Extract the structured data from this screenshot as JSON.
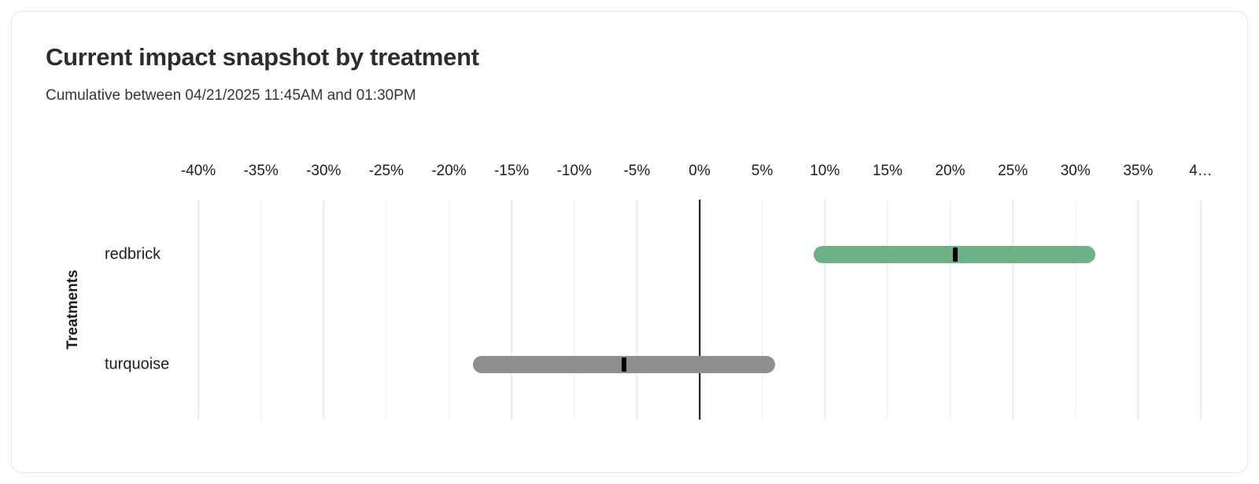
{
  "chart_data": {
    "type": "bar",
    "variant": "horizontal-range-interval",
    "title": "Current impact snapshot by treatment",
    "subtitle": "Cumulative between 04/21/2025 11:45AM and 01:30PM",
    "xlabel": "",
    "ylabel": "Treatments",
    "unit": "%",
    "categories": [
      "redbrick",
      "turquoise"
    ],
    "series": [
      {
        "name": "redbrick",
        "low": 9.1,
        "high": 31.6,
        "point": 20.4,
        "color": "#6db287"
      },
      {
        "name": "turquoise",
        "low": -18.1,
        "high": 6.0,
        "point": -6.0,
        "color": "#8f8f8f"
      }
    ],
    "xlim": [
      -40,
      40
    ],
    "tick_step": 5,
    "tick_values": [
      -40,
      -35,
      -30,
      -25,
      -20,
      -15,
      -10,
      -5,
      0,
      5,
      10,
      15,
      20,
      25,
      30,
      35,
      40
    ],
    "tick_labels": [
      "-40%",
      "-35%",
      "-30%",
      "-25%",
      "-20%",
      "-15%",
      "-10%",
      "-5%",
      "0%",
      "5%",
      "10%",
      "15%",
      "20%",
      "25%",
      "30%",
      "35%",
      "4…"
    ],
    "grid": true,
    "grid_color": "#ebebec",
    "zero_line_color": "#0d0d0d",
    "marker_color": "#000000",
    "legend": "none"
  }
}
